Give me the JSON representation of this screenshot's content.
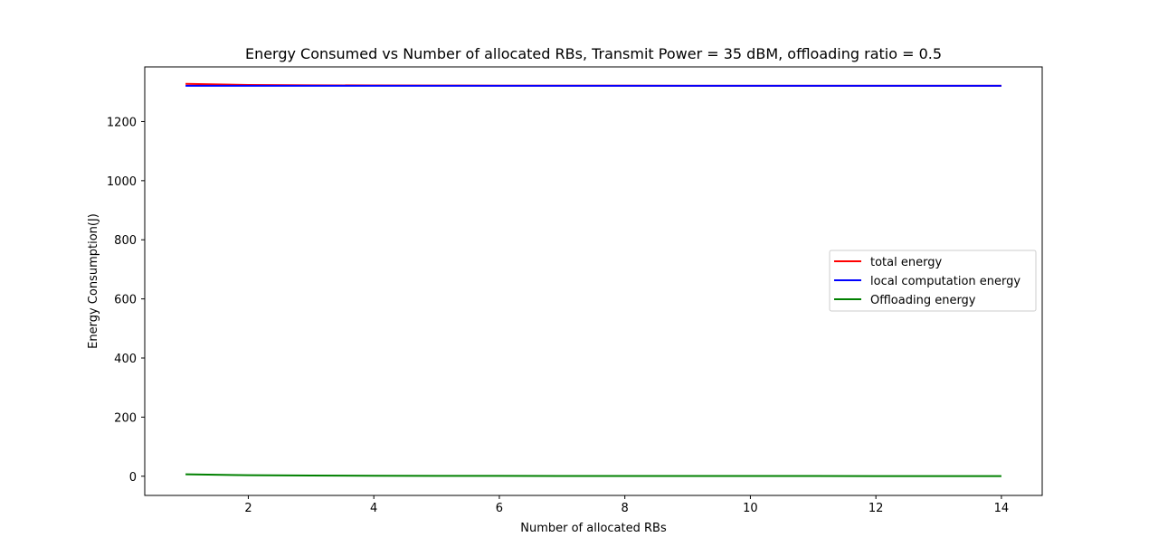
{
  "chart_data": {
    "type": "line",
    "title": "Energy Consumed vs Number of allocated RBs, Transmit Power = 35 dBM, offloading ratio = 0.5",
    "xlabel": "Number of allocated RBs",
    "ylabel": "Energy Consumption(J)",
    "xlim": [
      0.35,
      14.65
    ],
    "ylim": [
      -65,
      1385
    ],
    "xticks": [
      2,
      4,
      6,
      8,
      10,
      12,
      14
    ],
    "yticks": [
      0,
      200,
      400,
      600,
      800,
      1000,
      1200
    ],
    "grid": false,
    "legend_position": "center-right",
    "x": [
      1,
      2,
      3,
      4,
      5,
      6,
      7,
      8,
      9,
      10,
      11,
      12,
      13,
      14
    ],
    "series": [
      {
        "name": "total energy",
        "color": "#ff0000",
        "values": [
          1327.5,
          1324.0,
          1322.8,
          1322.2,
          1321.9,
          1321.7,
          1321.5,
          1321.4,
          1321.3,
          1321.2,
          1321.2,
          1321.1,
          1321.1,
          1321.0
        ]
      },
      {
        "name": "local computation energy",
        "color": "#0000ff",
        "values": [
          1321.0,
          1321.0,
          1321.0,
          1321.0,
          1321.0,
          1321.0,
          1321.0,
          1321.0,
          1321.0,
          1321.0,
          1321.0,
          1321.0,
          1321.0,
          1321.0
        ]
      },
      {
        "name": "Offloading energy",
        "color": "#008000",
        "values": [
          6.5,
          3.3,
          2.2,
          1.6,
          1.3,
          1.1,
          0.9,
          0.8,
          0.7,
          0.65,
          0.6,
          0.55,
          0.5,
          0.47
        ]
      }
    ]
  }
}
